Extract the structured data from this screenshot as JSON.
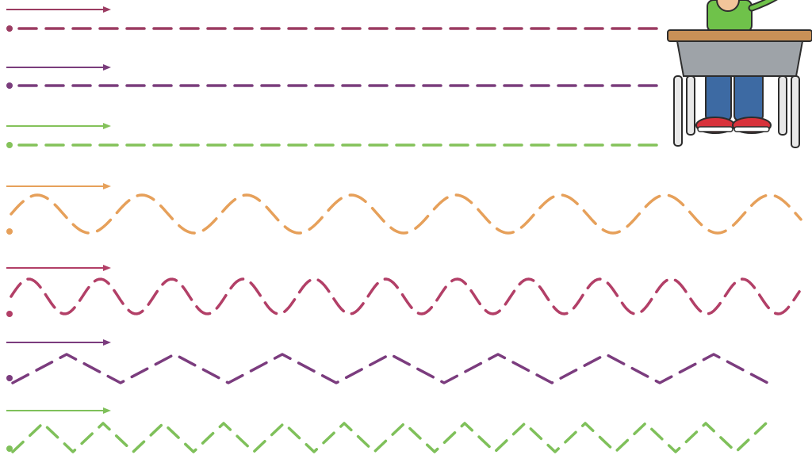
{
  "colors": {
    "maroon": "#9b3c62",
    "purple": "#7a3d7c",
    "green": "#84c25a",
    "orange": "#e6a05a",
    "crimson": "#b23f67",
    "violet": "#7b3c7e",
    "lime": "#7fc05a"
  },
  "worksheet": {
    "rows": [
      {
        "kind": "straight",
        "color": "maroon",
        "direction": "right"
      },
      {
        "kind": "straight",
        "color": "purple",
        "direction": "right"
      },
      {
        "kind": "straight",
        "color": "green",
        "direction": "right"
      },
      {
        "kind": "wave",
        "color": "orange",
        "direction": "right"
      },
      {
        "kind": "wave",
        "color": "crimson",
        "direction": "right"
      },
      {
        "kind": "zigzag",
        "color": "violet",
        "direction": "right"
      },
      {
        "kind": "zigzag",
        "color": "lime",
        "direction": "right"
      }
    ]
  },
  "illustration": {
    "subject": "child-at-desk",
    "icons": [
      "child-figure-icon",
      "school-desk-icon"
    ]
  }
}
